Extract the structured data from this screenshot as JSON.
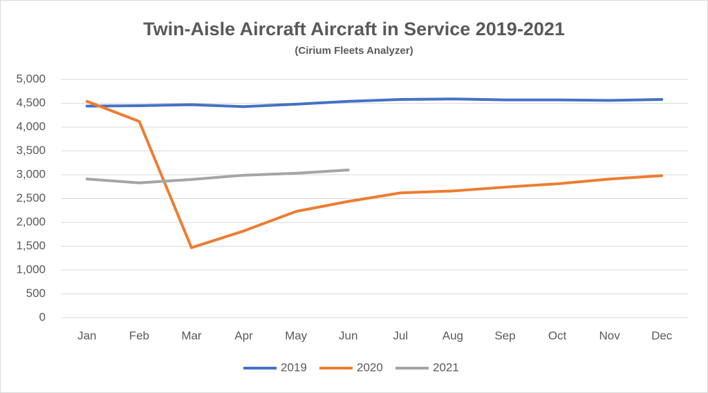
{
  "chart_data": {
    "type": "line",
    "title": "Twin-Aisle Aircraft Aircraft in Service 2019-2021",
    "subtitle": "(Cirium Fleets Analyzer)",
    "categories": [
      "Jan",
      "Feb",
      "Mar",
      "Apr",
      "May",
      "Jun",
      "Jul",
      "Aug",
      "Sep",
      "Oct",
      "Nov",
      "Dec"
    ],
    "series": [
      {
        "name": "2019",
        "color": "#4472c4",
        "values": [
          4440,
          4450,
          4470,
          4430,
          4480,
          4540,
          4580,
          4590,
          4570,
          4570,
          4560,
          4580
        ]
      },
      {
        "name": "2020",
        "color": "#ed7d31",
        "values": [
          4540,
          4120,
          1470,
          1820,
          2230,
          2440,
          2620,
          2660,
          2740,
          2810,
          2910,
          2980
        ]
      },
      {
        "name": "2021",
        "color": "#a5a5a5",
        "values": [
          2910,
          2830,
          2900,
          2990,
          3030,
          3100,
          null,
          null,
          null,
          null,
          null,
          null
        ]
      }
    ],
    "ylim": [
      0,
      5000
    ],
    "yticks": [
      0,
      500,
      {
        "value": 1000,
        "label": "1,000"
      },
      {
        "value": 1500,
        "label": "1,500"
      },
      {
        "value": 2000,
        "label": "2,000"
      },
      {
        "value": 2500,
        "label": "2,500"
      },
      {
        "value": 3000,
        "label": "3,000"
      },
      {
        "value": 3500,
        "label": "3,500"
      },
      {
        "value": 4000,
        "label": "4,000"
      },
      {
        "value": 4500,
        "label": "4,500"
      },
      {
        "value": 5000,
        "label": "5,000"
      }
    ],
    "grid": true,
    "legend": "bottom"
  }
}
